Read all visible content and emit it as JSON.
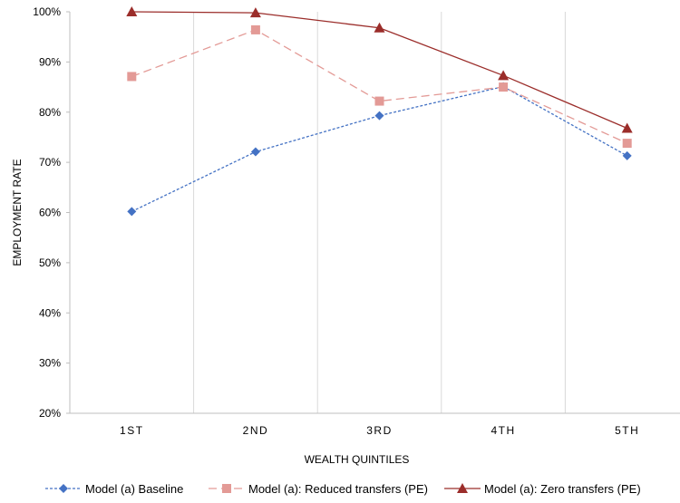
{
  "chart_data": {
    "type": "line",
    "categories": [
      "1ST",
      "2ND",
      "3RD",
      "4TH",
      "5TH"
    ],
    "xlabel": "WEALTH QUINTILES",
    "ylabel": "EMPLOYMENT RATE",
    "ylim": [
      20,
      100
    ],
    "yticks": [
      "20%",
      "30%",
      "40%",
      "50%",
      "60%",
      "70%",
      "80%",
      "90%",
      "100%"
    ],
    "grid": "vertical",
    "legend_position": "bottom",
    "series": [
      {
        "name": "Model (a) Baseline",
        "values": [
          60.2,
          72.1,
          79.3,
          85.1,
          71.3
        ],
        "color": "#4472C4",
        "marker": "diamond",
        "line_style": "dotted"
      },
      {
        "name": "Model (a): Reduced transfers (PE)",
        "values": [
          87.1,
          96.4,
          82.2,
          85.0,
          73.8
        ],
        "color": "#E39A96",
        "marker": "square",
        "line_style": "dashed"
      },
      {
        "name": "Model (a): Zero transfers (PE)",
        "values": [
          100.0,
          99.8,
          96.8,
          87.3,
          76.8
        ],
        "color": "#9B2D2A",
        "marker": "triangle",
        "line_style": "solid"
      }
    ]
  }
}
